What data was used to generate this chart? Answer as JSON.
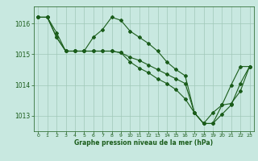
{
  "background_color": "#c8e8e0",
  "plot_bg_color": "#c8e8e0",
  "grid_color": "#a0c8b8",
  "line_color": "#1a5c1a",
  "marker_color": "#1a5c1a",
  "xlabel": "Graphe pression niveau de la mer (hPa)",
  "ylim": [
    1012.5,
    1016.55
  ],
  "xlim": [
    -0.5,
    23.5
  ],
  "yticks": [
    1013,
    1014,
    1015,
    1016
  ],
  "xticks": [
    0,
    1,
    2,
    3,
    4,
    5,
    6,
    7,
    8,
    9,
    10,
    11,
    12,
    13,
    14,
    15,
    16,
    17,
    18,
    19,
    20,
    21,
    22,
    23
  ],
  "line1": [
    1016.2,
    1016.2,
    1015.7,
    1015.1,
    1015.1,
    1015.1,
    1015.55,
    1015.8,
    1016.2,
    1016.1,
    1015.75,
    1015.55,
    1015.35,
    1015.1,
    1014.75,
    1014.5,
    1014.3,
    1013.1,
    1012.75,
    1012.75,
    1013.35,
    1014.0,
    1014.6,
    1014.6
  ],
  "line2": [
    1016.2,
    1016.2,
    1015.55,
    1015.1,
    1015.1,
    1015.1,
    1015.1,
    1015.1,
    1015.1,
    1015.05,
    1014.9,
    1014.8,
    1014.65,
    1014.5,
    1014.35,
    1014.2,
    1014.05,
    1013.1,
    1012.75,
    1012.75,
    1013.05,
    1013.35,
    1014.05,
    1014.6
  ],
  "line3": [
    1016.2,
    1016.2,
    1015.55,
    1015.1,
    1015.1,
    1015.1,
    1015.1,
    1015.1,
    1015.1,
    1015.05,
    1014.75,
    1014.55,
    1014.4,
    1014.2,
    1014.05,
    1013.85,
    1013.55,
    1013.1,
    1012.75,
    1013.1,
    1013.35,
    1013.4,
    1013.8,
    1014.6
  ]
}
